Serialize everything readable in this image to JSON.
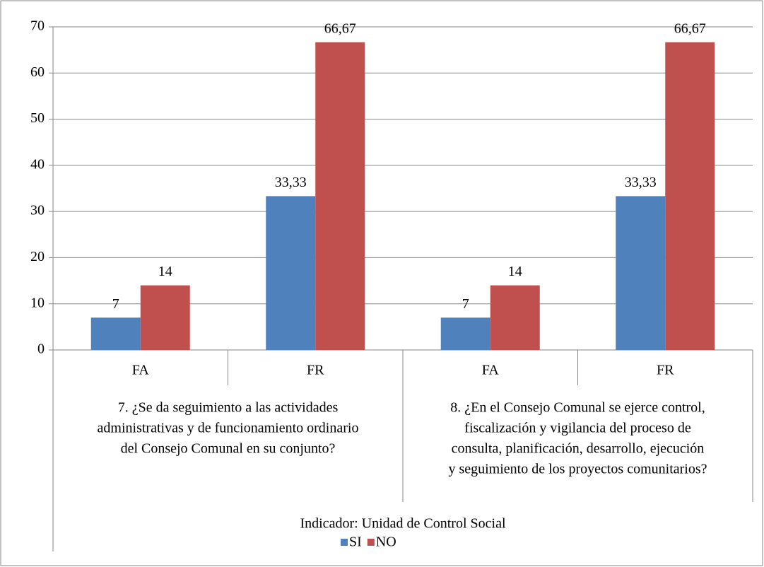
{
  "chart_data": {
    "type": "bar",
    "categories": [
      "FA",
      "FR",
      "FA",
      "FR"
    ],
    "groups": [
      [
        "7. ¿Se da seguimiento a las actividades",
        "administrativas y de funcionamiento ordinario",
        "del Consejo Comunal en su conjunto?"
      ],
      [
        "8. ¿En el Consejo Comunal se ejerce control,",
        "fiscalización y vigilancia del proceso de",
        "consulta, planificación, desarrollo, ejecución",
        "y seguimiento de los proyectos comunitarios?"
      ]
    ],
    "super_group": "Indicador: Unidad de Control Social",
    "series": [
      {
        "name": "SI",
        "color": "#4f81bd",
        "values": [
          7,
          33.33,
          7,
          33.33
        ],
        "value_labels": [
          "7",
          "33,33",
          "7",
          "33,33"
        ]
      },
      {
        "name": "NO",
        "color": "#c0504d",
        "values": [
          14,
          66.67,
          14,
          66.67
        ],
        "value_labels": [
          "14",
          "66,67",
          "14",
          "66,67"
        ]
      }
    ],
    "ylim": [
      0,
      70
    ],
    "yticks": [
      0,
      10,
      20,
      30,
      40,
      50,
      60,
      70
    ],
    "grid": true,
    "legend": "bottom"
  }
}
